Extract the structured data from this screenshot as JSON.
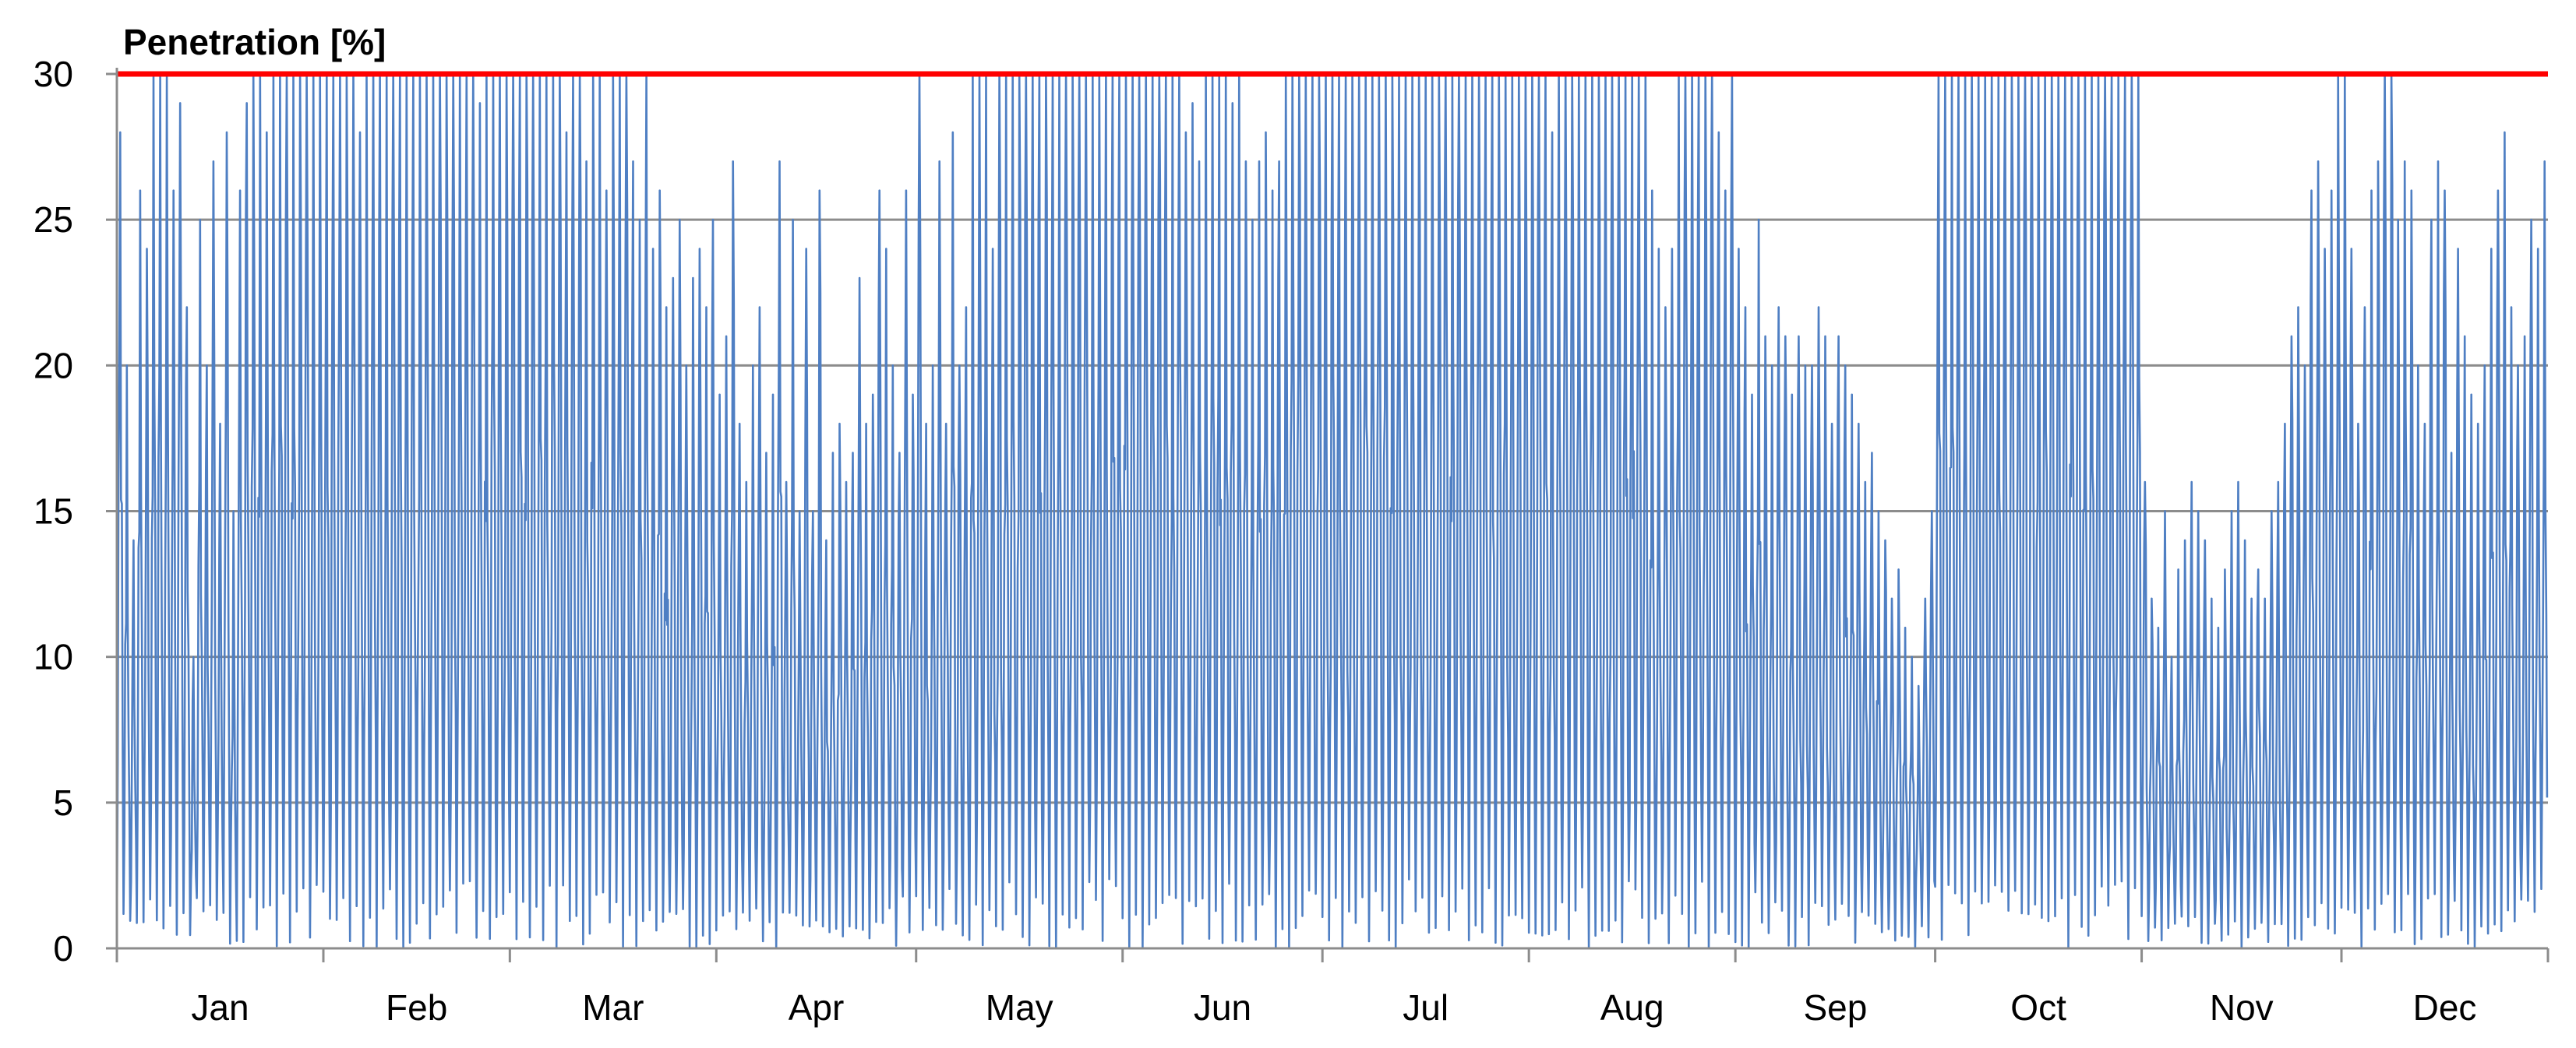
{
  "chart_data": {
    "type": "line",
    "title": "Penetration [%]",
    "xlabel": "",
    "ylabel": "",
    "x_unit": "hour of year",
    "xlim": [
      0,
      8760
    ],
    "ylim": [
      0,
      30
    ],
    "y_ticks": [
      0,
      5,
      10,
      15,
      20,
      25,
      30
    ],
    "grid": true,
    "legend": "none",
    "months": [
      "Jan",
      "Feb",
      "Mar",
      "Apr",
      "May",
      "Jun",
      "Jul",
      "Aug",
      "Sep",
      "Oct",
      "Nov",
      "Dec"
    ],
    "month_days": [
      31,
      28,
      31,
      30,
      31,
      30,
      31,
      31,
      30,
      31,
      30,
      31
    ],
    "cap_line": {
      "value": 30,
      "color": "#ff0000"
    },
    "series": [
      {
        "color": "#4f7fc3",
        "note_resolution": "daily envelope approximating hourly oscillation",
        "daily_peak": [
          28,
          20,
          14,
          26,
          24,
          30,
          30,
          30,
          26,
          29,
          22,
          10,
          25,
          20,
          27,
          18,
          28,
          15,
          26,
          29,
          30,
          30,
          28,
          30,
          30,
          30,
          30,
          30,
          30,
          30,
          30,
          30,
          30,
          30,
          30,
          30,
          28,
          30,
          30,
          30,
          30,
          30,
          30,
          30,
          30,
          30,
          30,
          30,
          30,
          30,
          30,
          30,
          30,
          30,
          29,
          30,
          30,
          30,
          30,
          30,
          30,
          30,
          30,
          30,
          30,
          30,
          30,
          28,
          30,
          30,
          27,
          30,
          30,
          26,
          30,
          30,
          30,
          27,
          25,
          30,
          24,
          26,
          22,
          23,
          25,
          20,
          23,
          24,
          22,
          25,
          19,
          21,
          27,
          18,
          16,
          20,
          22,
          17,
          19,
          27,
          16,
          25,
          15,
          24,
          15,
          26,
          14,
          17,
          18,
          16,
          17,
          23,
          18,
          19,
          26,
          24,
          20,
          17,
          26,
          19,
          30,
          18,
          20,
          27,
          18,
          28,
          20,
          22,
          30,
          30,
          30,
          24,
          30,
          30,
          30,
          30,
          30,
          30,
          30,
          30,
          30,
          30,
          30,
          30,
          30,
          30,
          30,
          30,
          30,
          30,
          30,
          30,
          30,
          30,
          30,
          30,
          30,
          30,
          30,
          30,
          28,
          29,
          27,
          30,
          30,
          30,
          30,
          29,
          30,
          27,
          25,
          27,
          28,
          26,
          27,
          30,
          30,
          30,
          30,
          30,
          30,
          30,
          30,
          30,
          30,
          30,
          30,
          30,
          30,
          30,
          30,
          30,
          30,
          30,
          30,
          30,
          30,
          30,
          30,
          30,
          30,
          30,
          30,
          30,
          30,
          30,
          30,
          30,
          30,
          30,
          30,
          30,
          30,
          30,
          30,
          28,
          30,
          30,
          30,
          30,
          30,
          30,
          30,
          30,
          30,
          30,
          30,
          30,
          30,
          30,
          26,
          24,
          22,
          24,
          30,
          30,
          30,
          30,
          30,
          30,
          28,
          26,
          30,
          24,
          22,
          19,
          25,
          21,
          20,
          22,
          21,
          19,
          21,
          20,
          20,
          22,
          21,
          18,
          21,
          20,
          19,
          18,
          16,
          17,
          15,
          14,
          12,
          13,
          11,
          10,
          9,
          12,
          15,
          30,
          30,
          30,
          30,
          30,
          30,
          30,
          30,
          30,
          30,
          30,
          30,
          30,
          30,
          30,
          30,
          30,
          30,
          30,
          30,
          30,
          30,
          30,
          30,
          30,
          30,
          30,
          30,
          30,
          30,
          30,
          16,
          12,
          11,
          15,
          10,
          13,
          14,
          16,
          15,
          14,
          12,
          11,
          13,
          15,
          16,
          14,
          12,
          13,
          12,
          15,
          16,
          18,
          21,
          22,
          20,
          26,
          27,
          24,
          26,
          30,
          30,
          24,
          18,
          22,
          26,
          27,
          30,
          30,
          25,
          27,
          26,
          20,
          18,
          25,
          27,
          26,
          17,
          24,
          21,
          19,
          18,
          20,
          24,
          26,
          28,
          22,
          20,
          21,
          25,
          24,
          27
        ]
      }
    ]
  }
}
